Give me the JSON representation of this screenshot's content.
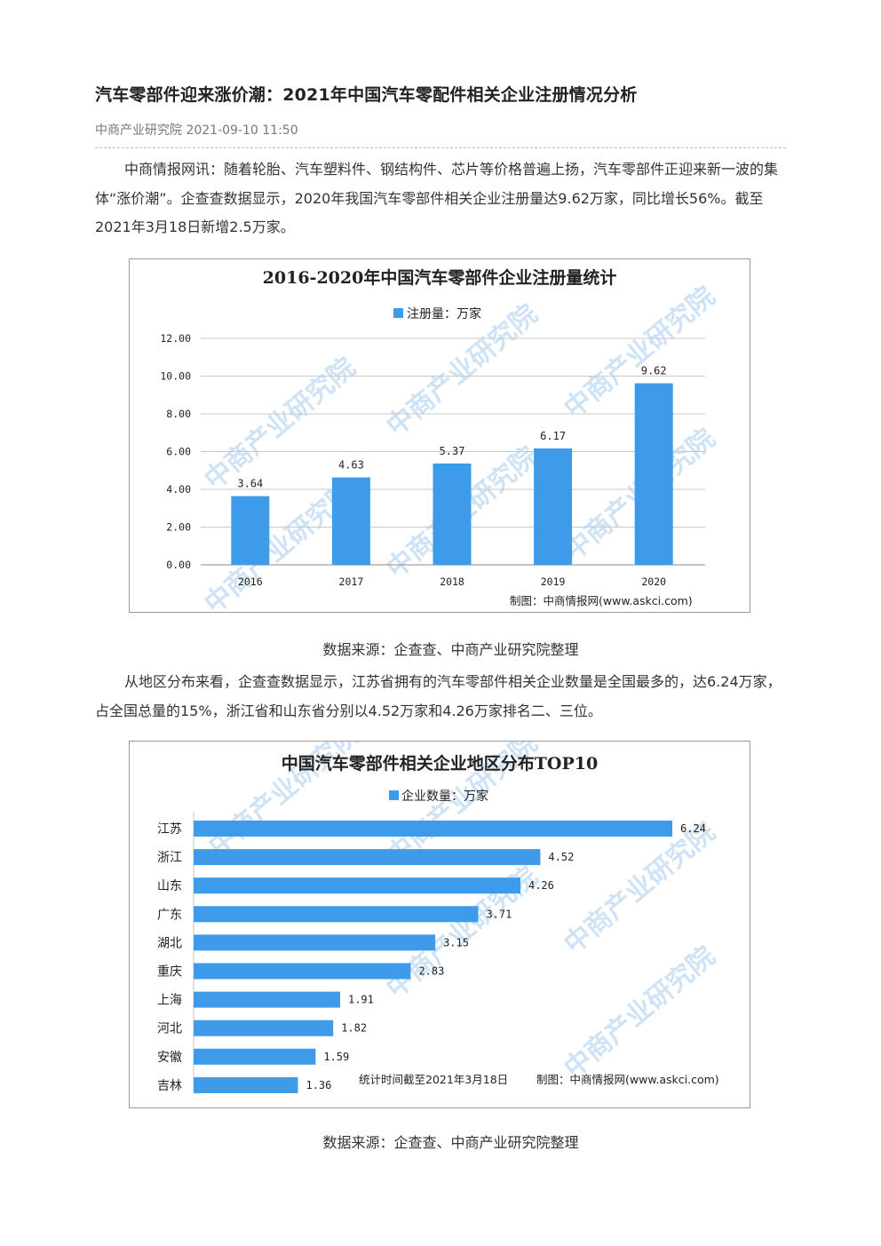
{
  "article": {
    "title": "汽车零部件迎来涨价潮：2021年中国汽车零配件相关企业注册情况分析",
    "meta": "中商产业研究院 2021-09-10 11:50",
    "para1": "中商情报网讯：随着轮胎、汽车塑料件、钢结构件、芯片等价格普遍上扬，汽车零部件正迎来新一波的集体“涨价潮”。企查查数据显示，2020年我国汽车零部件相关企业注册量达9.62万家，同比增长56%。截至2021年3月18日新增2.5万家。",
    "caption1": "数据来源：企查查、中商产业研究院整理",
    "para2": "从地区分布来看，企查查数据显示，江苏省拥有的汽车零部件相关企业数量是全国最多的，达6.24万家，占全国总量的15%，浙江省和山东省分别以4.52万家和4.26万家排名二、三位。",
    "caption2": "数据来源：企查查、中商产业研究院整理"
  },
  "watermark": "中商产业研究院",
  "colors": {
    "bar": "#3d9be9",
    "grid": "#c8c8c8",
    "axis": "#888888"
  },
  "chart_data": [
    {
      "type": "bar",
      "title": "2016-2020年中国汽车零部件企业注册量统计",
      "legend": "注册量：万家",
      "categories": [
        "2016",
        "2017",
        "2018",
        "2019",
        "2020"
      ],
      "values": [
        3.64,
        4.63,
        5.37,
        6.17,
        9.62
      ],
      "value_labels": [
        "3.64",
        "4.63",
        "5.37",
        "6.17",
        "9.62"
      ],
      "yticks": [
        "0.00",
        "2.00",
        "4.00",
        "6.00",
        "8.00",
        "10.00",
        "12.00"
      ],
      "ylim": [
        0,
        12
      ],
      "grid": true,
      "legend_position": "top",
      "credit": "制图：中商情报网(www.askci.com)"
    },
    {
      "type": "bar",
      "orientation": "horizontal",
      "title": "中国汽车零部件相关企业地区分布TOP10",
      "legend": "企业数量：万家",
      "categories": [
        "江苏",
        "浙江",
        "山东",
        "广东",
        "湖北",
        "重庆",
        "上海",
        "河北",
        "安徽",
        "吉林"
      ],
      "values": [
        6.24,
        4.52,
        4.26,
        3.71,
        3.15,
        2.83,
        1.91,
        1.82,
        1.59,
        1.36
      ],
      "value_labels": [
        "6.24",
        "4.52",
        "4.26",
        "3.71",
        "3.15",
        "2.83",
        "1.91",
        "1.82",
        "1.59",
        "1.36"
      ],
      "xlim": [
        0,
        6.24
      ],
      "grid": false,
      "legend_position": "top",
      "note": "统计时间截至2021年3月18日",
      "credit": "制图：中商情报网(www.askci.com)"
    }
  ]
}
